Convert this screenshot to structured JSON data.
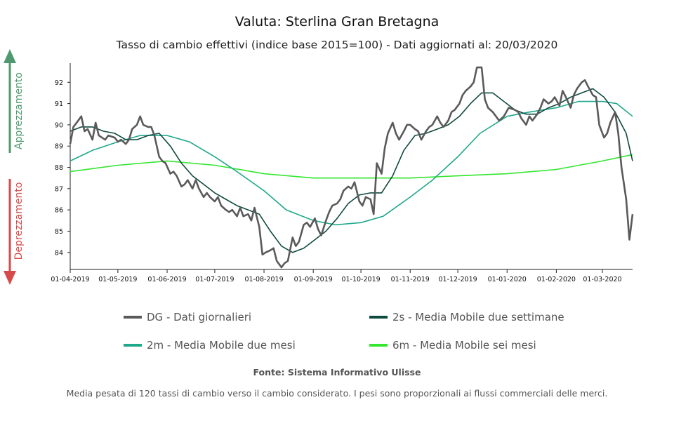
{
  "chart_data": {
    "type": "line",
    "title": "Valuta: Sterlina Gran Bretagna",
    "subtitle": "Tasso di cambio effettivi (indice base 2015=100) - Dati aggiornati al: 20/03/2020",
    "ylim": [
      83.2,
      92.9
    ],
    "y_ticks": [
      84,
      85,
      86,
      87,
      88,
      89,
      90,
      91,
      92
    ],
    "xlim": [
      "2019-04-01",
      "2020-03-20"
    ],
    "x_tick_labels": [
      "01-04-2019",
      "01-05-2019",
      "01-06-2019",
      "01-07-2019",
      "01-08-2019",
      "01-09-2019",
      "01-10-2019",
      "01-11-2019",
      "01-12-2019",
      "01-01-2020",
      "01-02-2020",
      "01-03-2020"
    ],
    "x_tick_dates": [
      "2019-04-01",
      "2019-05-01",
      "2019-06-01",
      "2019-07-01",
      "2019-08-01",
      "2019-09-01",
      "2019-10-01",
      "2019-11-01",
      "2019-12-01",
      "2020-01-01",
      "2020-02-01",
      "2020-03-01"
    ],
    "side_labels": {
      "up": "Apprezzamento",
      "down": "Deprezzamento"
    },
    "series": [
      {
        "name": "DG - Dati giornalieri",
        "color": "#5a5a5a",
        "points": [
          [
            "2019-04-01",
            89.1
          ],
          [
            "2019-04-03",
            89.9
          ],
          [
            "2019-04-05",
            90.1
          ],
          [
            "2019-04-08",
            90.4
          ],
          [
            "2019-04-10",
            89.7
          ],
          [
            "2019-04-12",
            89.8
          ],
          [
            "2019-04-15",
            89.3
          ],
          [
            "2019-04-17",
            90.1
          ],
          [
            "2019-04-19",
            89.5
          ],
          [
            "2019-04-23",
            89.3
          ],
          [
            "2019-04-25",
            89.5
          ],
          [
            "2019-04-29",
            89.4
          ],
          [
            "2019-05-01",
            89.2
          ],
          [
            "2019-05-03",
            89.3
          ],
          [
            "2019-05-06",
            89.1
          ],
          [
            "2019-05-08",
            89.3
          ],
          [
            "2019-05-10",
            89.8
          ],
          [
            "2019-05-13",
            90.0
          ],
          [
            "2019-05-15",
            90.4
          ],
          [
            "2019-05-17",
            90.0
          ],
          [
            "2019-05-20",
            89.9
          ],
          [
            "2019-05-22",
            89.9
          ],
          [
            "2019-05-24",
            89.5
          ],
          [
            "2019-05-27",
            88.5
          ],
          [
            "2019-05-29",
            88.3
          ],
          [
            "2019-05-31",
            88.2
          ],
          [
            "2019-06-03",
            87.7
          ],
          [
            "2019-06-05",
            87.8
          ],
          [
            "2019-06-07",
            87.6
          ],
          [
            "2019-06-10",
            87.1
          ],
          [
            "2019-06-12",
            87.2
          ],
          [
            "2019-06-14",
            87.4
          ],
          [
            "2019-06-17",
            87.0
          ],
          [
            "2019-06-19",
            87.4
          ],
          [
            "2019-06-21",
            87.0
          ],
          [
            "2019-06-24",
            86.6
          ],
          [
            "2019-06-26",
            86.8
          ],
          [
            "2019-06-28",
            86.6
          ],
          [
            "2019-07-01",
            86.4
          ],
          [
            "2019-07-03",
            86.6
          ],
          [
            "2019-07-05",
            86.2
          ],
          [
            "2019-07-08",
            86.0
          ],
          [
            "2019-07-10",
            85.9
          ],
          [
            "2019-07-12",
            86.0
          ],
          [
            "2019-07-15",
            85.7
          ],
          [
            "2019-07-17",
            86.1
          ],
          [
            "2019-07-19",
            85.7
          ],
          [
            "2019-07-22",
            85.8
          ],
          [
            "2019-07-24",
            85.5
          ],
          [
            "2019-07-26",
            86.1
          ],
          [
            "2019-07-29",
            85.2
          ],
          [
            "2019-07-31",
            83.9
          ],
          [
            "2019-08-02",
            84.0
          ],
          [
            "2019-08-05",
            84.1
          ],
          [
            "2019-08-07",
            84.2
          ],
          [
            "2019-08-09",
            83.6
          ],
          [
            "2019-08-12",
            83.3
          ],
          [
            "2019-08-14",
            83.5
          ],
          [
            "2019-08-16",
            83.6
          ],
          [
            "2019-08-19",
            84.7
          ],
          [
            "2019-08-21",
            84.3
          ],
          [
            "2019-08-23",
            84.5
          ],
          [
            "2019-08-26",
            85.3
          ],
          [
            "2019-08-28",
            85.4
          ],
          [
            "2019-08-30",
            85.2
          ],
          [
            "2019-09-02",
            85.6
          ],
          [
            "2019-09-04",
            85.1
          ],
          [
            "2019-09-06",
            84.8
          ],
          [
            "2019-09-09",
            85.5
          ],
          [
            "2019-09-11",
            85.9
          ],
          [
            "2019-09-13",
            86.2
          ],
          [
            "2019-09-16",
            86.3
          ],
          [
            "2019-09-18",
            86.5
          ],
          [
            "2019-09-20",
            86.9
          ],
          [
            "2019-09-23",
            87.1
          ],
          [
            "2019-09-25",
            87.0
          ],
          [
            "2019-09-27",
            87.3
          ],
          [
            "2019-09-30",
            86.4
          ],
          [
            "2019-10-02",
            86.2
          ],
          [
            "2019-10-04",
            86.6
          ],
          [
            "2019-10-07",
            86.5
          ],
          [
            "2019-10-09",
            85.8
          ],
          [
            "2019-10-11",
            88.2
          ],
          [
            "2019-10-14",
            87.7
          ],
          [
            "2019-10-16",
            88.9
          ],
          [
            "2019-10-18",
            89.6
          ],
          [
            "2019-10-21",
            90.1
          ],
          [
            "2019-10-23",
            89.6
          ],
          [
            "2019-10-25",
            89.3
          ],
          [
            "2019-10-28",
            89.7
          ],
          [
            "2019-10-30",
            90.0
          ],
          [
            "2019-11-01",
            90.0
          ],
          [
            "2019-11-04",
            89.8
          ],
          [
            "2019-11-06",
            89.7
          ],
          [
            "2019-11-08",
            89.3
          ],
          [
            "2019-11-11",
            89.7
          ],
          [
            "2019-11-13",
            89.9
          ],
          [
            "2019-11-15",
            90.0
          ],
          [
            "2019-11-18",
            90.4
          ],
          [
            "2019-11-20",
            90.1
          ],
          [
            "2019-11-22",
            89.9
          ],
          [
            "2019-11-25",
            90.2
          ],
          [
            "2019-11-27",
            90.6
          ],
          [
            "2019-11-29",
            90.7
          ],
          [
            "2019-12-02",
            91.0
          ],
          [
            "2019-12-04",
            91.4
          ],
          [
            "2019-12-06",
            91.6
          ],
          [
            "2019-12-09",
            91.8
          ],
          [
            "2019-12-11",
            92.0
          ],
          [
            "2019-12-13",
            92.7
          ],
          [
            "2019-12-16",
            92.7
          ],
          [
            "2019-12-18",
            91.2
          ],
          [
            "2019-12-20",
            90.8
          ],
          [
            "2019-12-23",
            90.6
          ],
          [
            "2019-12-27",
            90.2
          ],
          [
            "2019-12-30",
            90.4
          ],
          [
            "2020-01-02",
            90.8
          ],
          [
            "2020-01-06",
            90.7
          ],
          [
            "2020-01-08",
            90.6
          ],
          [
            "2020-01-10",
            90.3
          ],
          [
            "2020-01-13",
            90.0
          ],
          [
            "2020-01-15",
            90.4
          ],
          [
            "2020-01-17",
            90.2
          ],
          [
            "2020-01-20",
            90.5
          ],
          [
            "2020-01-22",
            90.8
          ],
          [
            "2020-01-24",
            91.2
          ],
          [
            "2020-01-27",
            91.0
          ],
          [
            "2020-01-29",
            91.1
          ],
          [
            "2020-01-31",
            91.3
          ],
          [
            "2020-02-03",
            90.9
          ],
          [
            "2020-02-05",
            91.6
          ],
          [
            "2020-02-07",
            91.3
          ],
          [
            "2020-02-10",
            90.8
          ],
          [
            "2020-02-12",
            91.4
          ],
          [
            "2020-02-14",
            91.7
          ],
          [
            "2020-02-17",
            92.0
          ],
          [
            "2020-02-19",
            92.1
          ],
          [
            "2020-02-21",
            91.8
          ],
          [
            "2020-02-24",
            91.4
          ],
          [
            "2020-02-26",
            91.3
          ],
          [
            "2020-02-28",
            90.0
          ],
          [
            "2020-03-02",
            89.4
          ],
          [
            "2020-03-04",
            89.6
          ],
          [
            "2020-03-06",
            90.1
          ],
          [
            "2020-03-09",
            90.6
          ],
          [
            "2020-03-11",
            89.6
          ],
          [
            "2020-03-13",
            88.0
          ],
          [
            "2020-03-16",
            86.5
          ],
          [
            "2020-03-18",
            84.6
          ],
          [
            "2020-03-20",
            85.8
          ]
        ]
      },
      {
        "name": "2s - Media Mobile due settimane",
        "color": "#0f4a3f",
        "points": [
          [
            "2019-04-01",
            89.7
          ],
          [
            "2019-04-08",
            89.9
          ],
          [
            "2019-04-15",
            89.9
          ],
          [
            "2019-04-22",
            89.7
          ],
          [
            "2019-04-29",
            89.6
          ],
          [
            "2019-05-06",
            89.3
          ],
          [
            "2019-05-13",
            89.3
          ],
          [
            "2019-05-20",
            89.5
          ],
          [
            "2019-05-27",
            89.6
          ],
          [
            "2019-06-03",
            89.0
          ],
          [
            "2019-06-10",
            88.2
          ],
          [
            "2019-06-17",
            87.6
          ],
          [
            "2019-06-24",
            87.2
          ],
          [
            "2019-07-01",
            86.8
          ],
          [
            "2019-07-08",
            86.5
          ],
          [
            "2019-07-15",
            86.2
          ],
          [
            "2019-07-22",
            86.0
          ],
          [
            "2019-07-29",
            85.8
          ],
          [
            "2019-08-05",
            85.0
          ],
          [
            "2019-08-12",
            84.3
          ],
          [
            "2019-08-19",
            84.0
          ],
          [
            "2019-08-26",
            84.2
          ],
          [
            "2019-09-02",
            84.6
          ],
          [
            "2019-09-09",
            85.0
          ],
          [
            "2019-09-16",
            85.6
          ],
          [
            "2019-09-23",
            86.3
          ],
          [
            "2019-09-30",
            86.7
          ],
          [
            "2019-10-07",
            86.8
          ],
          [
            "2019-10-14",
            86.8
          ],
          [
            "2019-10-21",
            87.6
          ],
          [
            "2019-10-28",
            88.8
          ],
          [
            "2019-11-04",
            89.5
          ],
          [
            "2019-11-11",
            89.6
          ],
          [
            "2019-11-18",
            89.8
          ],
          [
            "2019-11-25",
            90.0
          ],
          [
            "2019-12-02",
            90.4
          ],
          [
            "2019-12-09",
            91.0
          ],
          [
            "2019-12-16",
            91.5
          ],
          [
            "2019-12-23",
            91.5
          ],
          [
            "2019-12-30",
            91.1
          ],
          [
            "2020-01-06",
            90.7
          ],
          [
            "2020-01-13",
            90.5
          ],
          [
            "2020-01-20",
            90.5
          ],
          [
            "2020-01-27",
            90.8
          ],
          [
            "2020-02-03",
            91.0
          ],
          [
            "2020-02-10",
            91.3
          ],
          [
            "2020-02-17",
            91.5
          ],
          [
            "2020-02-24",
            91.7
          ],
          [
            "2020-03-02",
            91.3
          ],
          [
            "2020-03-09",
            90.6
          ],
          [
            "2020-03-16",
            89.6
          ],
          [
            "2020-03-20",
            88.3
          ]
        ]
      },
      {
        "name": "2m - Media Mobile due mesi",
        "color": "#1fa88a",
        "points": [
          [
            "2019-04-01",
            88.3
          ],
          [
            "2019-04-15",
            88.8
          ],
          [
            "2019-05-01",
            89.2
          ],
          [
            "2019-05-15",
            89.5
          ],
          [
            "2019-06-01",
            89.5
          ],
          [
            "2019-06-15",
            89.2
          ],
          [
            "2019-07-01",
            88.5
          ],
          [
            "2019-07-15",
            87.8
          ],
          [
            "2019-08-01",
            86.9
          ],
          [
            "2019-08-15",
            86.0
          ],
          [
            "2019-09-01",
            85.5
          ],
          [
            "2019-09-15",
            85.3
          ],
          [
            "2019-10-01",
            85.4
          ],
          [
            "2019-10-15",
            85.7
          ],
          [
            "2019-11-01",
            86.6
          ],
          [
            "2019-11-15",
            87.4
          ],
          [
            "2019-12-01",
            88.5
          ],
          [
            "2019-12-15",
            89.6
          ],
          [
            "2020-01-01",
            90.4
          ],
          [
            "2020-01-15",
            90.6
          ],
          [
            "2020-02-01",
            90.8
          ],
          [
            "2020-02-15",
            91.1
          ],
          [
            "2020-03-01",
            91.1
          ],
          [
            "2020-03-10",
            91.0
          ],
          [
            "2020-03-20",
            90.4
          ]
        ]
      },
      {
        "name": "6m - Media Mobile sei mesi",
        "color": "#33e62e",
        "points": [
          [
            "2019-04-01",
            87.8
          ],
          [
            "2019-05-01",
            88.1
          ],
          [
            "2019-06-01",
            88.3
          ],
          [
            "2019-07-01",
            88.1
          ],
          [
            "2019-08-01",
            87.7
          ],
          [
            "2019-09-01",
            87.5
          ],
          [
            "2019-10-01",
            87.5
          ],
          [
            "2019-11-01",
            87.5
          ],
          [
            "2019-12-01",
            87.6
          ],
          [
            "2020-01-01",
            87.7
          ],
          [
            "2020-02-01",
            87.9
          ],
          [
            "2020-03-01",
            88.3
          ],
          [
            "2020-03-20",
            88.6
          ]
        ]
      }
    ]
  },
  "legend": [
    {
      "label": "DG - Dati giornalieri",
      "color": "#5a5a5a"
    },
    {
      "label": "2s - Media Mobile due settimane",
      "color": "#0f4a3f"
    },
    {
      "label": "2m - Media Mobile due mesi",
      "color": "#1fa88a"
    },
    {
      "label": "6m - Media Mobile sei mesi",
      "color": "#33e62e"
    }
  ],
  "colors": {
    "up_arrow": "#4e9a6e",
    "down_arrow": "#d64a4a"
  },
  "footer": {
    "source": "Fonte: Sistema Informativo Ulisse",
    "note": "Media pesata di 120 tassi di cambio verso il cambio considerato. I pesi sono proporzionali ai flussi commerciali delle merci."
  }
}
